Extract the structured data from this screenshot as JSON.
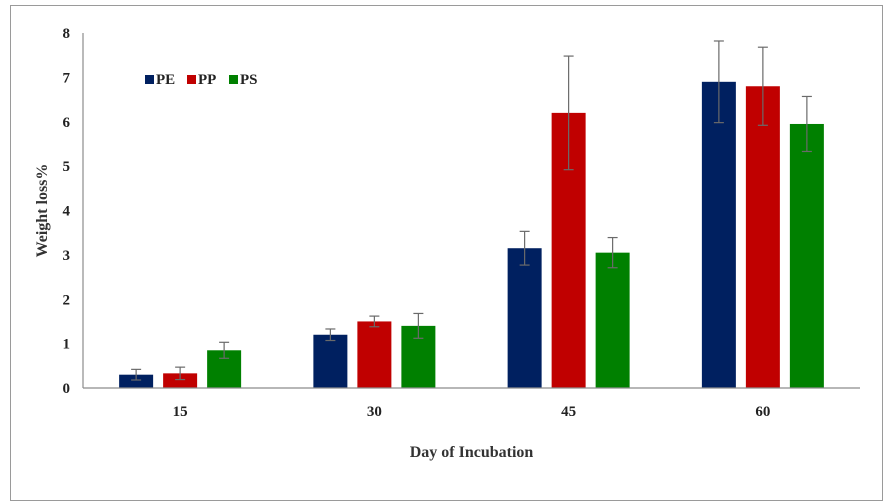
{
  "chart_data": {
    "type": "bar",
    "categories": [
      "15",
      "30",
      "45",
      "60"
    ],
    "series": [
      {
        "name": "PE",
        "color": "#002060",
        "values": [
          0.3,
          1.2,
          3.15,
          6.9
        ],
        "errors": [
          0.12,
          0.13,
          0.38,
          0.92
        ]
      },
      {
        "name": "PP",
        "color": "#c00000",
        "values": [
          0.33,
          1.5,
          6.2,
          6.8
        ],
        "errors": [
          0.14,
          0.12,
          1.28,
          0.88
        ]
      },
      {
        "name": "PS",
        "color": "#008000",
        "values": [
          0.85,
          1.4,
          3.05,
          5.95
        ],
        "errors": [
          0.18,
          0.28,
          0.34,
          0.62
        ]
      }
    ],
    "xlabel": "Day of Incubation",
    "ylabel": "Weight loss%",
    "ylim": [
      0,
      8
    ],
    "yticks": [
      "0",
      "1",
      "2",
      "3",
      "4",
      "5",
      "6",
      "7",
      "8"
    ],
    "grid": false,
    "legend": "top-left"
  }
}
